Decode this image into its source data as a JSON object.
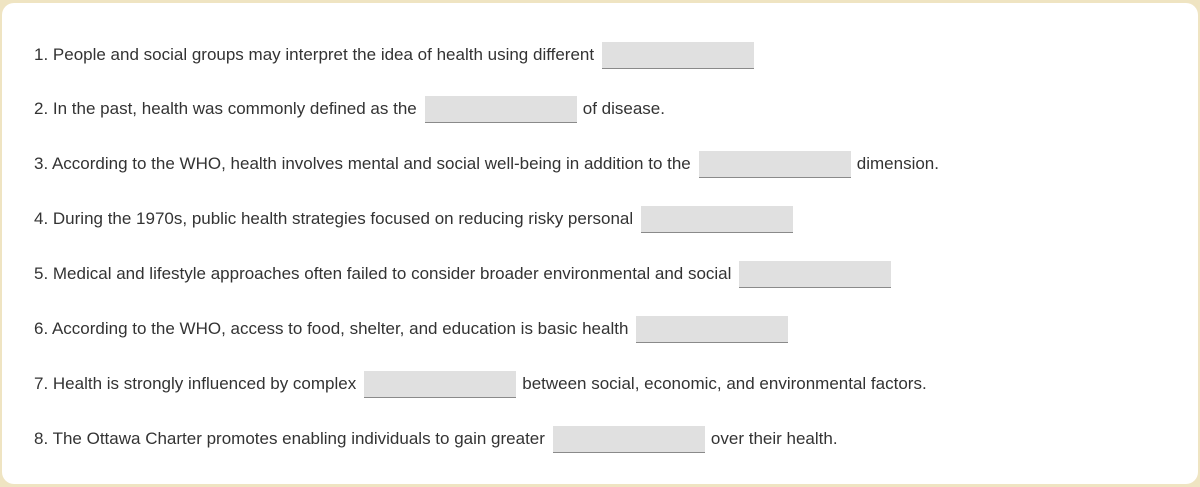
{
  "questions": [
    {
      "before": "1. People and social groups may interpret the idea of health using different",
      "answer": "",
      "after": ""
    },
    {
      "before": "2. In the past, health was commonly defined as the",
      "answer": "",
      "after": "of disease."
    },
    {
      "before": "3. According to the WHO, health involves mental and social well-being in addition to the",
      "answer": "",
      "after": "dimension."
    },
    {
      "before": "4. During the 1970s, public health strategies focused on reducing risky personal",
      "answer": "",
      "after": ""
    },
    {
      "before": "5. Medical and lifestyle approaches often failed to consider broader environmental and social",
      "answer": "",
      "after": ""
    },
    {
      "before": "6. According to the WHO, access to food, shelter, and education is basic health",
      "answer": "",
      "after": ""
    },
    {
      "before": "7. Health is strongly influenced by complex",
      "answer": "",
      "after": "between social, economic, and environmental factors."
    },
    {
      "before": "8. The Ottawa Charter promotes enabling individuals to gain greater",
      "answer": "",
      "after": "over their health."
    }
  ]
}
